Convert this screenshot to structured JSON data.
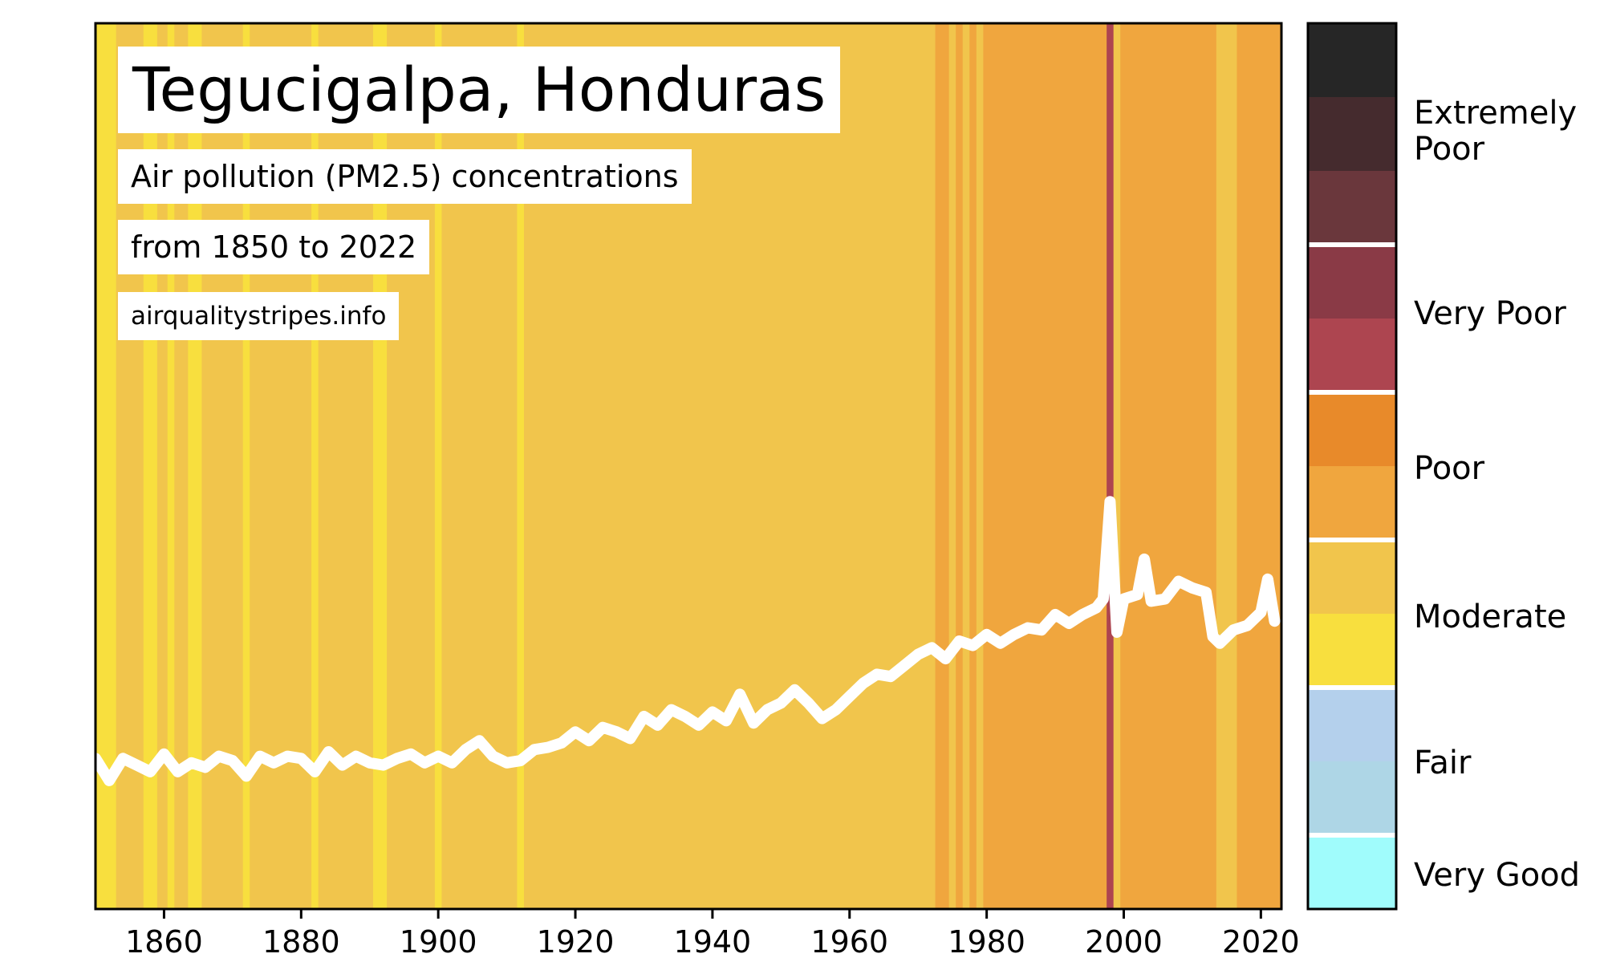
{
  "chart_data": {
    "type": "heatmap",
    "title": "Tegucigalpa, Honduras",
    "subtitle": "Air pollution (PM2.5) concentrations",
    "period": "from 1850 to 2022",
    "source": "airqualitystripes.info",
    "xlim": [
      1850,
      2023
    ],
    "x_ticks": [
      "1860",
      "1880",
      "1900",
      "1920",
      "1940",
      "1960",
      "1980",
      "2000",
      "2020"
    ],
    "ylim": [
      0,
      40
    ],
    "line_color": "#ffffff",
    "stripe_colors": {
      "moderate_light": "#f8df3e",
      "moderate": "#f1c54c",
      "poor": "#f0a63e",
      "very_poor": "#ad4550"
    },
    "stripes": [
      {
        "from": 1850,
        "to": 1853,
        "level": "moderate_light"
      },
      {
        "from": 1857,
        "to": 1859,
        "level": "moderate_light"
      },
      {
        "from": 1860.5,
        "to": 1861.5,
        "level": "moderate_light"
      },
      {
        "from": 1863.5,
        "to": 1865.5,
        "level": "moderate_light"
      },
      {
        "from": 1871.5,
        "to": 1872.5,
        "level": "moderate_light"
      },
      {
        "from": 1881.5,
        "to": 1882.5,
        "level": "moderate_light"
      },
      {
        "from": 1890.5,
        "to": 1892.5,
        "level": "moderate_light"
      },
      {
        "from": 1899.5,
        "to": 1900.5,
        "level": "moderate_light"
      },
      {
        "from": 1911.5,
        "to": 1912.5,
        "level": "moderate_light"
      },
      {
        "from": 1972.5,
        "to": 1974.5,
        "level": "poor"
      },
      {
        "from": 1975.5,
        "to": 1976.5,
        "level": "poor"
      },
      {
        "from": 1977.5,
        "to": 1978.5,
        "level": "poor"
      },
      {
        "from": 1979.5,
        "to": 1997.5,
        "level": "poor"
      },
      {
        "from": 1997.5,
        "to": 1998.5,
        "level": "very_poor"
      },
      {
        "from": 1999.5,
        "to": 2013.5,
        "level": "poor"
      },
      {
        "from": 2016.5,
        "to": 2023,
        "level": "poor"
      }
    ],
    "series": [
      {
        "x": [
          1850,
          1852,
          1854,
          1856,
          1858,
          1860,
          1862,
          1864,
          1866,
          1868,
          1870,
          1872,
          1874,
          1876,
          1878,
          1880,
          1882,
          1884,
          1886,
          1888,
          1890,
          1892,
          1894,
          1896,
          1898,
          1900,
          1902,
          1904,
          1906,
          1908,
          1910,
          1912,
          1914,
          1916,
          1918,
          1920,
          1922,
          1924,
          1926,
          1928,
          1930,
          1932,
          1934,
          1936,
          1938,
          1940,
          1942,
          1944,
          1946,
          1948,
          1950,
          1952,
          1954,
          1956,
          1958,
          1960,
          1962,
          1964,
          1966,
          1968,
          1970,
          1972,
          1974,
          1976,
          1978,
          1980,
          1982,
          1984,
          1986,
          1988,
          1990,
          1992,
          1994,
          1996,
          1997,
          1998,
          1999,
          2000,
          2002,
          2003,
          2004,
          2006,
          2008,
          2010,
          2012,
          2013,
          2014,
          2016,
          2018,
          2020,
          2021,
          2022
        ],
        "values": [
          6.8,
          5.8,
          6.8,
          6.5,
          6.2,
          7.0,
          6.2,
          6.6,
          6.4,
          6.9,
          6.7,
          6.0,
          6.9,
          6.6,
          6.9,
          6.8,
          6.2,
          7.1,
          6.5,
          6.9,
          6.6,
          6.5,
          6.8,
          7.0,
          6.6,
          6.9,
          6.6,
          7.2,
          7.6,
          6.9,
          6.6,
          6.7,
          7.2,
          7.3,
          7.5,
          8.0,
          7.6,
          8.2,
          8.0,
          7.7,
          8.7,
          8.3,
          9.0,
          8.7,
          8.3,
          8.9,
          8.5,
          9.7,
          8.4,
          9.0,
          9.3,
          9.9,
          9.3,
          8.6,
          9.0,
          9.6,
          10.2,
          10.6,
          10.5,
          11.0,
          11.5,
          11.8,
          11.3,
          12.1,
          11.9,
          12.4,
          12.0,
          12.4,
          12.7,
          12.6,
          13.3,
          12.9,
          13.3,
          13.6,
          14.0,
          18.4,
          12.5,
          14.0,
          14.2,
          15.8,
          13.9,
          14.0,
          14.8,
          14.5,
          14.3,
          12.3,
          12.0,
          12.6,
          12.8,
          13.4,
          14.9,
          13.0
        ]
      }
    ],
    "legend": {
      "levels": [
        "Extremely Poor",
        "Very Poor",
        "Poor",
        "Moderate",
        "Fair",
        "Very Good"
      ],
      "colors": [
        "#262626",
        "#452b2e",
        "#6a373c",
        "#8a3a46",
        "#ad4550",
        "#e88a2a",
        "#f0a63e",
        "#f1c54c",
        "#f8df3e",
        "#b4d0ec",
        "#aed6e6",
        "#a0fcfc"
      ]
    }
  }
}
